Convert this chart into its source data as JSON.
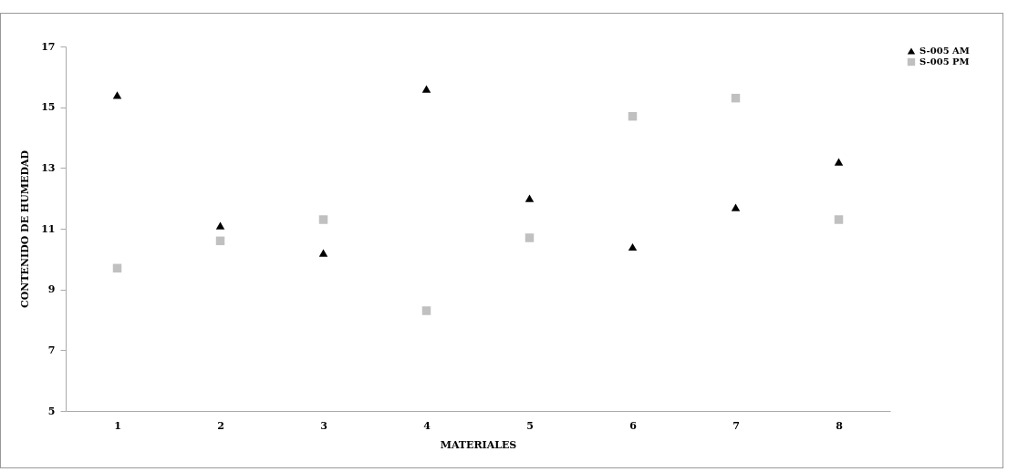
{
  "chart_data": {
    "type": "scatter",
    "xlabel": "MATERIALES",
    "ylabel": "CONTENIDO DE HUMEDAD",
    "categories": [
      "1",
      "2",
      "3",
      "4",
      "5",
      "6",
      "7",
      "8"
    ],
    "series": [
      {
        "name": "S-005 AM",
        "color": "#000000",
        "marker": "triangle",
        "values": [
          15.4,
          11.1,
          10.2,
          15.6,
          12.0,
          10.4,
          11.7,
          13.2
        ]
      },
      {
        "name": "S-005 PM",
        "color": "#c0c0c0",
        "marker": "square",
        "values": [
          9.7,
          10.6,
          11.3,
          8.3,
          10.7,
          14.7,
          15.3,
          11.3
        ]
      }
    ],
    "ylim": [
      5,
      17
    ],
    "yticks": [
      5,
      7,
      9,
      11,
      13,
      15,
      17
    ],
    "grid": false,
    "legend": "right"
  }
}
